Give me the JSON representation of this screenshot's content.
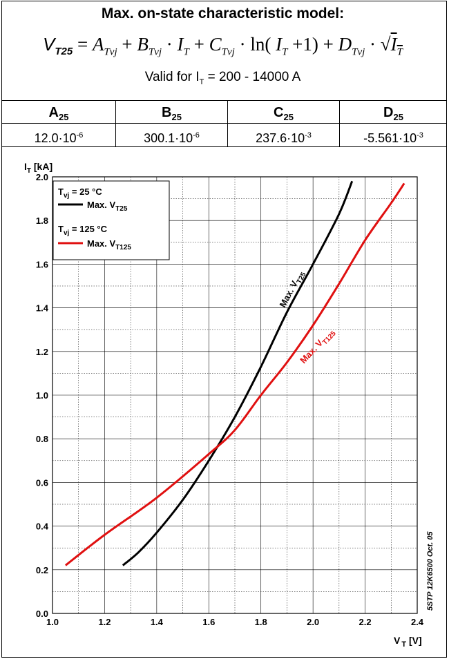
{
  "model": {
    "title": "Max. on-state characteristic model:",
    "formula": {
      "lhs": "V",
      "lhs_sub": "T25",
      "a": "A",
      "a_sub": "Tvj",
      "b": "B",
      "b_sub": "Tvj",
      "it": "I",
      "it_sub": "T",
      "c": "C",
      "c_sub": "Tvj",
      "ln": "ln",
      "d": "D",
      "d_sub": "Tvj"
    },
    "valid_prefix": "Valid for I",
    "valid_sub": "T",
    "valid_suffix": " = 200 - 14000 A"
  },
  "params": [
    {
      "name": "A",
      "sub": "25",
      "mantissa": "12.0·10",
      "exp": "-6"
    },
    {
      "name": "B",
      "sub": "25",
      "mantissa": "300.1·10",
      "exp": "-6"
    },
    {
      "name": "C",
      "sub": "25",
      "mantissa": "237.6·10",
      "exp": "-3"
    },
    {
      "name": "D",
      "sub": "25",
      "mantissa": "-5.561·10",
      "exp": "-3"
    }
  ],
  "chart_data": {
    "type": "line",
    "ylabel": "I",
    "ylabel_sub": "T",
    "ylabel_unit": " [kA]",
    "xlabel": "V",
    "xlabel_sub": "T",
    "xlabel_unit": " [V]",
    "xlim": [
      1.0,
      2.4
    ],
    "ylim": [
      0.0,
      2.0
    ],
    "x_ticks": [
      "1.0",
      "1.2",
      "1.4",
      "1.6",
      "1.8",
      "2.0",
      "2.2",
      "2.4"
    ],
    "y_ticks": [
      "0.0",
      "0.2",
      "0.4",
      "0.6",
      "0.8",
      "1.0",
      "1.2",
      "1.4",
      "1.6",
      "1.8",
      "2.0"
    ],
    "grid": true,
    "legend_position": "top-left",
    "series": [
      {
        "name": "Max. V",
        "name_sub": "T25",
        "condition": "T",
        "condition_sub": "vj",
        "condition_value": " = 25 °C",
        "color": "#000000",
        "annotation": "Max. V",
        "annotation_sub": "T25",
        "points": [
          [
            1.27,
            0.22
          ],
          [
            1.33,
            0.28
          ],
          [
            1.4,
            0.37
          ],
          [
            1.5,
            0.52
          ],
          [
            1.6,
            0.7
          ],
          [
            1.7,
            0.9
          ],
          [
            1.8,
            1.13
          ],
          [
            1.9,
            1.38
          ],
          [
            2.0,
            1.6
          ],
          [
            2.1,
            1.83
          ],
          [
            2.15,
            1.98
          ]
        ]
      },
      {
        "name": "Max. V",
        "name_sub": "T125",
        "condition": "T",
        "condition_sub": "vj",
        "condition_value": " = 125 °C",
        "color": "#e01010",
        "annotation": "Max. V",
        "annotation_sub": "T125",
        "points": [
          [
            1.05,
            0.22
          ],
          [
            1.2,
            0.36
          ],
          [
            1.4,
            0.53
          ],
          [
            1.6,
            0.73
          ],
          [
            1.7,
            0.84
          ],
          [
            1.8,
            1.0
          ],
          [
            1.9,
            1.15
          ],
          [
            2.0,
            1.32
          ],
          [
            2.1,
            1.51
          ],
          [
            2.2,
            1.71
          ],
          [
            2.3,
            1.88
          ],
          [
            2.35,
            1.97
          ]
        ]
      }
    ]
  },
  "doc_id": "5STP 12K6500 Oct. 05"
}
